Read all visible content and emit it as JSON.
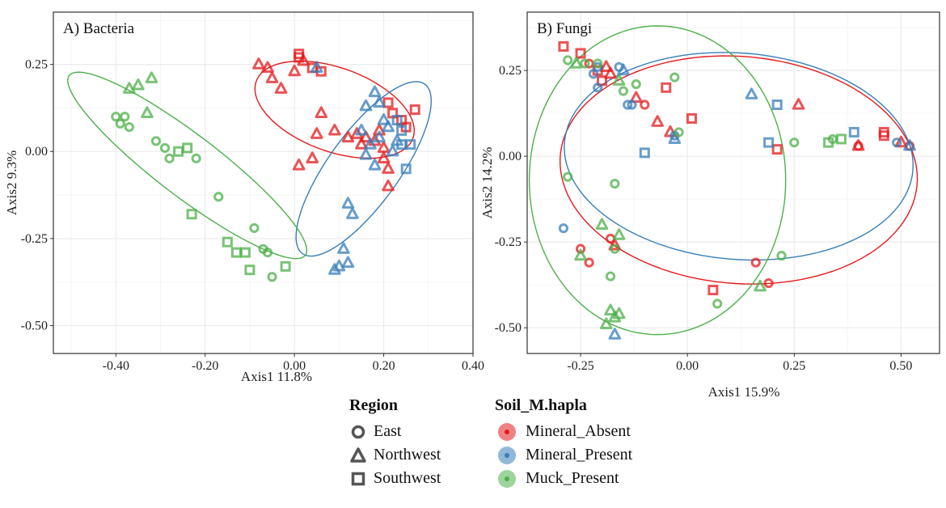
{
  "colors": {
    "Mineral_Absent": "#e41a1c",
    "Mineral_Present": "#377eb8",
    "Muck_Present": "#4daf4a",
    "panel_border": "#333333",
    "grid": "#ebebeb",
    "legend_shape": "#555555"
  },
  "legend": {
    "region": {
      "title": "Region",
      "items": [
        {
          "label": "East",
          "shape": "circle"
        },
        {
          "label": "Northwest",
          "shape": "triangle"
        },
        {
          "label": "Southwest",
          "shape": "square"
        }
      ]
    },
    "soil": {
      "title": "Soil_M.hapla",
      "items": [
        {
          "label": "Mineral_Absent",
          "group": "Mineral_Absent"
        },
        {
          "label": "Mineral_Present",
          "group": "Mineral_Present"
        },
        {
          "label": "Muck_Present",
          "group": "Muck_Present"
        }
      ]
    }
  },
  "chart_data": [
    {
      "type": "scatter",
      "title": "A) Bacteria",
      "xlabel": "Axis1 11.8%",
      "ylabel": "Axis2 9.3%",
      "xlim": [
        -0.54,
        0.4
      ],
      "ylim": [
        -0.58,
        0.4
      ],
      "xticks": [
        -0.4,
        -0.2,
        0.0,
        0.2,
        0.4
      ],
      "xtick_labels": [
        "-0.40",
        "-0.20",
        "0.00",
        "0.20",
        "0.40"
      ],
      "yticks": [
        0.25,
        0.0,
        -0.25,
        -0.5
      ],
      "ytick_labels": [
        "0.25",
        "0.00",
        "-0.25",
        "-0.50"
      ],
      "ellipses": [
        {
          "group": "Mineral_Absent",
          "center": [
            0.09,
            0.12
          ],
          "semi_axes": [
            0.195,
            0.115
          ],
          "angle_deg": -30
        },
        {
          "group": "Mineral_Present",
          "center": [
            0.155,
            -0.05
          ],
          "semi_axes": [
            0.28,
            0.085
          ],
          "angle_deg": 62
        },
        {
          "group": "Muck_Present",
          "center": [
            -0.24,
            -0.04
          ],
          "semi_axes": [
            0.37,
            0.08
          ],
          "angle_deg": -45
        }
      ],
      "series": [
        {
          "name": "Mineral_Absent",
          "points": [
            [
              -0.08,
              0.25,
              "triangle"
            ],
            [
              -0.06,
              0.24,
              "triangle"
            ],
            [
              -0.05,
              0.21,
              "triangle"
            ],
            [
              -0.03,
              0.18,
              "triangle"
            ],
            [
              0.0,
              0.23,
              "triangle"
            ],
            [
              0.02,
              0.26,
              "triangle"
            ],
            [
              0.01,
              0.28,
              "square"
            ],
            [
              0.01,
              0.27,
              "square"
            ],
            [
              0.04,
              0.24,
              "square"
            ],
            [
              0.06,
              0.23,
              "square"
            ],
            [
              0.06,
              0.11,
              "triangle"
            ],
            [
              0.05,
              0.05,
              "triangle"
            ],
            [
              0.09,
              0.06,
              "triangle"
            ],
            [
              0.12,
              0.04,
              "triangle"
            ],
            [
              0.14,
              0.05,
              "triangle"
            ],
            [
              0.15,
              0.02,
              "triangle"
            ],
            [
              0.16,
              0.04,
              "triangle"
            ],
            [
              0.18,
              0.03,
              "triangle"
            ],
            [
              0.19,
              0.06,
              "triangle"
            ],
            [
              0.2,
              0.01,
              "triangle"
            ],
            [
              0.21,
              0.14,
              "square"
            ],
            [
              0.22,
              0.11,
              "square"
            ],
            [
              0.24,
              0.09,
              "square"
            ],
            [
              0.25,
              0.07,
              "square"
            ],
            [
              0.27,
              0.12,
              "square"
            ],
            [
              0.2,
              -0.02,
              "triangle"
            ],
            [
              0.21,
              -0.05,
              "triangle"
            ],
            [
              0.21,
              -0.1,
              "triangle"
            ],
            [
              0.04,
              -0.02,
              "triangle"
            ],
            [
              0.01,
              -0.04,
              "triangle"
            ]
          ]
        },
        {
          "name": "Mineral_Present",
          "points": [
            [
              0.05,
              0.24,
              "triangle"
            ],
            [
              0.18,
              0.17,
              "triangle"
            ],
            [
              0.19,
              0.14,
              "triangle"
            ],
            [
              0.16,
              0.13,
              "triangle"
            ],
            [
              0.2,
              0.09,
              "triangle"
            ],
            [
              0.21,
              0.07,
              "triangle"
            ],
            [
              0.19,
              0.04,
              "triangle"
            ],
            [
              0.17,
              0.02,
              "triangle"
            ],
            [
              0.16,
              -0.01,
              "triangle"
            ],
            [
              0.18,
              -0.04,
              "triangle"
            ],
            [
              0.23,
              0.03,
              "triangle"
            ],
            [
              0.22,
              0.0,
              "triangle"
            ],
            [
              0.24,
              0.02,
              "square"
            ],
            [
              0.26,
              0.02,
              "square"
            ],
            [
              0.25,
              -0.05,
              "square"
            ],
            [
              0.24,
              0.06,
              "square"
            ],
            [
              0.23,
              0.09,
              "square"
            ],
            [
              0.15,
              0.06,
              "triangle"
            ],
            [
              0.12,
              -0.15,
              "triangle"
            ],
            [
              0.13,
              -0.18,
              "triangle"
            ],
            [
              0.11,
              -0.28,
              "triangle"
            ],
            [
              0.1,
              -0.33,
              "triangle"
            ],
            [
              0.12,
              -0.32,
              "triangle"
            ],
            [
              0.09,
              -0.34,
              "triangle"
            ]
          ]
        },
        {
          "name": "Muck_Present",
          "points": [
            [
              -0.32,
              0.21,
              "triangle"
            ],
            [
              -0.35,
              0.19,
              "triangle"
            ],
            [
              -0.37,
              0.18,
              "triangle"
            ],
            [
              -0.33,
              0.11,
              "triangle"
            ],
            [
              -0.4,
              0.1,
              "circle"
            ],
            [
              -0.38,
              0.1,
              "circle"
            ],
            [
              -0.39,
              0.08,
              "circle"
            ],
            [
              -0.37,
              0.07,
              "circle"
            ],
            [
              -0.31,
              0.03,
              "circle"
            ],
            [
              -0.29,
              0.01,
              "circle"
            ],
            [
              -0.28,
              -0.02,
              "circle"
            ],
            [
              -0.26,
              0.0,
              "square"
            ],
            [
              -0.24,
              0.01,
              "square"
            ],
            [
              -0.22,
              -0.02,
              "circle"
            ],
            [
              -0.23,
              -0.18,
              "square"
            ],
            [
              -0.17,
              -0.13,
              "circle"
            ],
            [
              -0.15,
              -0.26,
              "square"
            ],
            [
              -0.13,
              -0.29,
              "square"
            ],
            [
              -0.11,
              -0.29,
              "square"
            ],
            [
              -0.1,
              -0.34,
              "square"
            ],
            [
              -0.09,
              -0.22,
              "circle"
            ],
            [
              -0.07,
              -0.28,
              "circle"
            ],
            [
              -0.06,
              -0.29,
              "circle"
            ],
            [
              -0.05,
              -0.36,
              "circle"
            ],
            [
              -0.02,
              -0.33,
              "square"
            ]
          ]
        }
      ]
    },
    {
      "type": "scatter",
      "title": "B) Fungi",
      "xlabel": "Axis1 15.9%",
      "ylabel": "Axis2 14.2%",
      "xlim": [
        -0.375,
        0.59
      ],
      "ylim": [
        -0.575,
        0.42
      ],
      "xticks": [
        -0.25,
        0.0,
        0.25,
        0.5
      ],
      "xtick_labels": [
        "-0.25",
        "0.00",
        "0.25",
        "0.50"
      ],
      "yticks": [
        0.25,
        0.0,
        -0.25,
        -0.5
      ],
      "ytick_labels": [
        "0.25",
        "0.00",
        "-0.25",
        "-0.50"
      ],
      "ellipses": [
        {
          "group": "Mineral_Absent",
          "center": [
            0.12,
            -0.04
          ],
          "semi_axes": [
            0.42,
            0.33
          ],
          "angle_deg": -9
        },
        {
          "group": "Mineral_Present",
          "center": [
            0.12,
            0.0
          ],
          "semi_axes": [
            0.41,
            0.3
          ],
          "angle_deg": -8
        },
        {
          "group": "Muck_Present",
          "center": [
            -0.07,
            -0.07
          ],
          "semi_axes": [
            0.3,
            0.45
          ],
          "angle_deg": 0
        }
      ],
      "series": [
        {
          "name": "Mineral_Absent",
          "points": [
            [
              -0.29,
              0.32,
              "square"
            ],
            [
              -0.25,
              0.3,
              "square"
            ],
            [
              -0.23,
              0.27,
              "circle"
            ],
            [
              -0.21,
              0.25,
              "square"
            ],
            [
              -0.19,
              0.26,
              "triangle"
            ],
            [
              -0.2,
              0.22,
              "square"
            ],
            [
              -0.18,
              0.24,
              "triangle"
            ],
            [
              -0.12,
              0.17,
              "triangle"
            ],
            [
              -0.1,
              0.15,
              "circle"
            ],
            [
              -0.07,
              0.1,
              "triangle"
            ],
            [
              -0.05,
              0.2,
              "square"
            ],
            [
              0.01,
              0.11,
              "square"
            ],
            [
              -0.04,
              0.07,
              "triangle"
            ],
            [
              0.21,
              0.02,
              "square"
            ],
            [
              0.26,
              0.15,
              "triangle"
            ],
            [
              0.4,
              0.03,
              "circle"
            ],
            [
              0.4,
              0.03,
              "triangle"
            ],
            [
              0.46,
              0.06,
              "square"
            ],
            [
              0.46,
              0.07,
              "square"
            ],
            [
              0.5,
              0.04,
              "triangle"
            ],
            [
              0.52,
              0.03,
              "circle"
            ],
            [
              -0.23,
              -0.31,
              "circle"
            ],
            [
              -0.25,
              -0.27,
              "circle"
            ],
            [
              -0.18,
              -0.24,
              "circle"
            ],
            [
              -0.17,
              -0.26,
              "triangle"
            ],
            [
              0.06,
              -0.39,
              "square"
            ],
            [
              0.16,
              -0.31,
              "circle"
            ],
            [
              0.19,
              -0.37,
              "circle"
            ]
          ]
        },
        {
          "name": "Mineral_Present",
          "points": [
            [
              -0.22,
              0.24,
              "circle"
            ],
            [
              -0.21,
              0.26,
              "circle"
            ],
            [
              -0.16,
              0.26,
              "circle"
            ],
            [
              -0.15,
              0.25,
              "triangle"
            ],
            [
              -0.21,
              0.2,
              "circle"
            ],
            [
              -0.13,
              0.15,
              "circle"
            ],
            [
              -0.14,
              0.15,
              "circle"
            ],
            [
              -0.1,
              0.01,
              "square"
            ],
            [
              -0.03,
              0.06,
              "circle"
            ],
            [
              -0.03,
              0.05,
              "triangle"
            ],
            [
              0.15,
              0.18,
              "triangle"
            ],
            [
              0.21,
              0.15,
              "square"
            ],
            [
              0.19,
              0.04,
              "square"
            ],
            [
              0.39,
              0.07,
              "square"
            ],
            [
              0.49,
              0.04,
              "circle"
            ],
            [
              0.52,
              0.03,
              "triangle"
            ],
            [
              -0.29,
              -0.21,
              "circle"
            ],
            [
              -0.17,
              -0.52,
              "triangle"
            ]
          ]
        },
        {
          "name": "Muck_Present",
          "points": [
            [
              -0.28,
              0.28,
              "circle"
            ],
            [
              -0.26,
              0.27,
              "triangle"
            ],
            [
              -0.24,
              0.27,
              "circle"
            ],
            [
              -0.21,
              0.27,
              "circle"
            ],
            [
              -0.15,
              0.19,
              "circle"
            ],
            [
              -0.16,
              0.22,
              "triangle"
            ],
            [
              -0.12,
              0.21,
              "circle"
            ],
            [
              -0.03,
              0.23,
              "circle"
            ],
            [
              -0.02,
              0.07,
              "circle"
            ],
            [
              0.25,
              0.04,
              "circle"
            ],
            [
              0.33,
              0.04,
              "square"
            ],
            [
              0.34,
              0.05,
              "circle"
            ],
            [
              0.36,
              0.05,
              "square"
            ],
            [
              -0.28,
              -0.06,
              "circle"
            ],
            [
              -0.17,
              -0.08,
              "circle"
            ],
            [
              -0.2,
              -0.2,
              "triangle"
            ],
            [
              -0.16,
              -0.23,
              "triangle"
            ],
            [
              -0.17,
              -0.27,
              "circle"
            ],
            [
              -0.25,
              -0.29,
              "triangle"
            ],
            [
              -0.18,
              -0.35,
              "circle"
            ],
            [
              -0.18,
              -0.45,
              "triangle"
            ],
            [
              -0.17,
              -0.47,
              "triangle"
            ],
            [
              -0.19,
              -0.49,
              "triangle"
            ],
            [
              -0.16,
              -0.46,
              "triangle"
            ],
            [
              0.07,
              -0.43,
              "circle"
            ],
            [
              0.17,
              -0.38,
              "triangle"
            ],
            [
              0.22,
              -0.29,
              "circle"
            ]
          ]
        }
      ]
    }
  ]
}
